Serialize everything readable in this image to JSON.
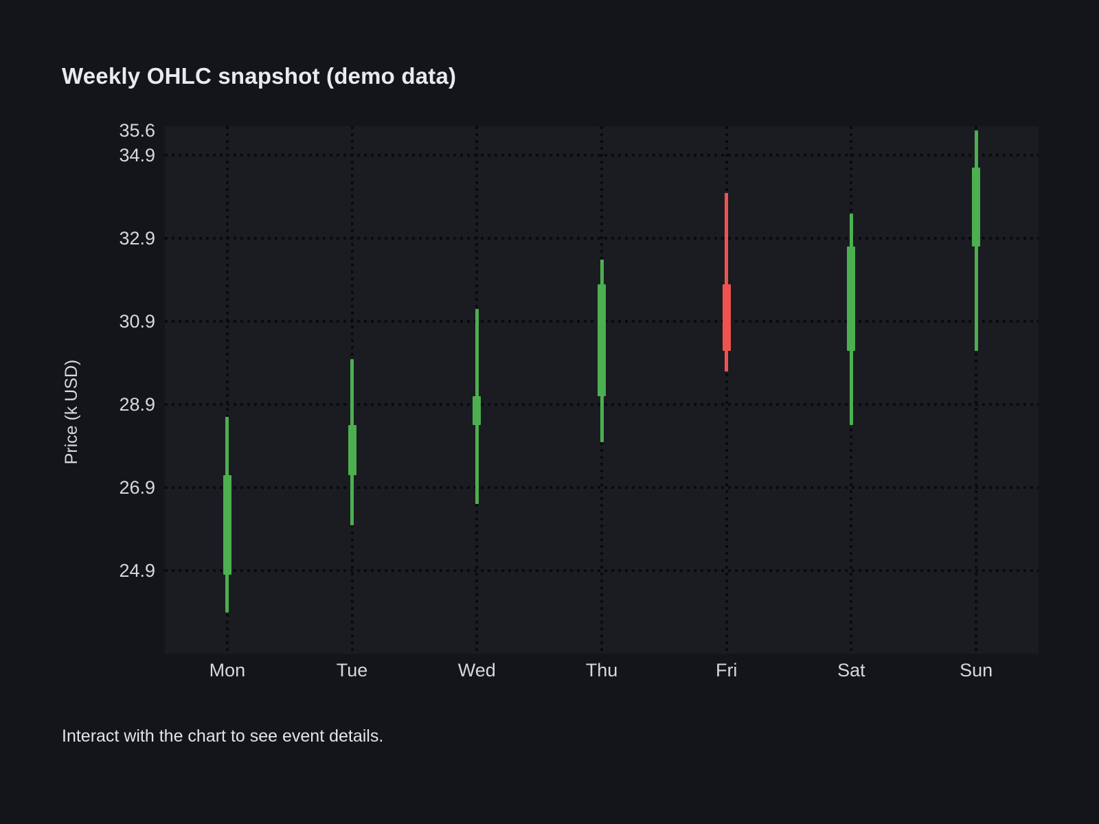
{
  "page": {
    "title": "Weekly OHLC snapshot (demo data)",
    "footer_note": "Interact with the chart to see event details."
  },
  "chart_data": {
    "type": "candlestick",
    "title": "Weekly OHLC snapshot (demo data)",
    "xlabel": "",
    "ylabel": "Price (k USD)",
    "categories": [
      "Mon",
      "Tue",
      "Wed",
      "Thu",
      "Fri",
      "Sat",
      "Sun"
    ],
    "series": [
      {
        "day": "Mon",
        "open": 24.8,
        "high": 28.6,
        "low": 23.9,
        "close": 27.2,
        "direction": "up"
      },
      {
        "day": "Tue",
        "open": 27.2,
        "high": 30.0,
        "low": 26.0,
        "close": 28.4,
        "direction": "up"
      },
      {
        "day": "Wed",
        "open": 28.4,
        "high": 31.2,
        "low": 26.5,
        "close": 29.1,
        "direction": "up"
      },
      {
        "day": "Thu",
        "open": 29.1,
        "high": 32.4,
        "low": 28.0,
        "close": 31.8,
        "direction": "up"
      },
      {
        "day": "Fri",
        "open": 31.8,
        "high": 34.0,
        "low": 29.7,
        "close": 30.2,
        "direction": "down"
      },
      {
        "day": "Sat",
        "open": 30.2,
        "high": 33.5,
        "low": 28.4,
        "close": 32.7,
        "direction": "up"
      },
      {
        "day": "Sun",
        "open": 32.7,
        "high": 35.5,
        "low": 30.2,
        "close": 34.6,
        "direction": "up"
      }
    ],
    "y_ticks": [
      35.6,
      34.9,
      32.9,
      30.9,
      28.9,
      26.9,
      24.9
    ],
    "y_range": [
      22.9,
      35.6
    ],
    "grid": "dotted",
    "legend": "none",
    "colors": {
      "increasing": "#4caf50",
      "decreasing": "#ef5350",
      "page_background": "#13151a",
      "plot_background": "#1a1c21",
      "gridline": "#0a0b0d",
      "tick_text": "#d6d8db",
      "title_text": "#e8eaed"
    }
  }
}
